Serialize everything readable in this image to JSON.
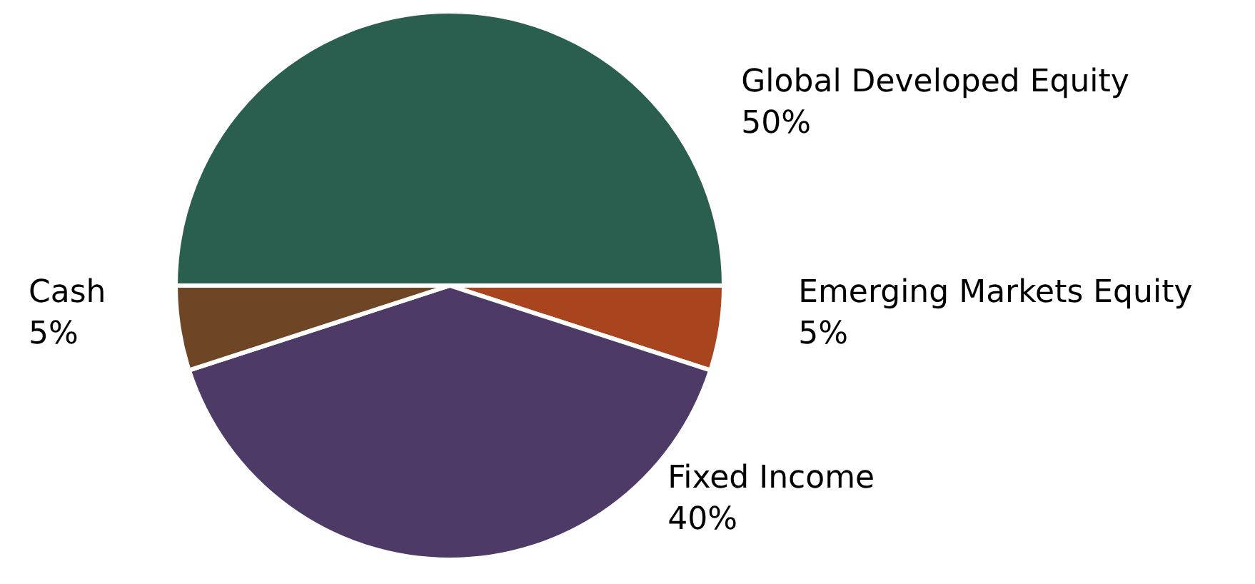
{
  "chart_data": {
    "type": "pie",
    "categories": [
      "Global Developed Equity",
      "Emerging Markets Equity",
      "Fixed Income",
      "Cash"
    ],
    "values": [
      50,
      5,
      40,
      5
    ],
    "colors": [
      "#2a5e4f",
      "#a8441e",
      "#4e3a66",
      "#6e4626"
    ],
    "value_labels": [
      "50%",
      "5%",
      "40%",
      "5%"
    ]
  }
}
